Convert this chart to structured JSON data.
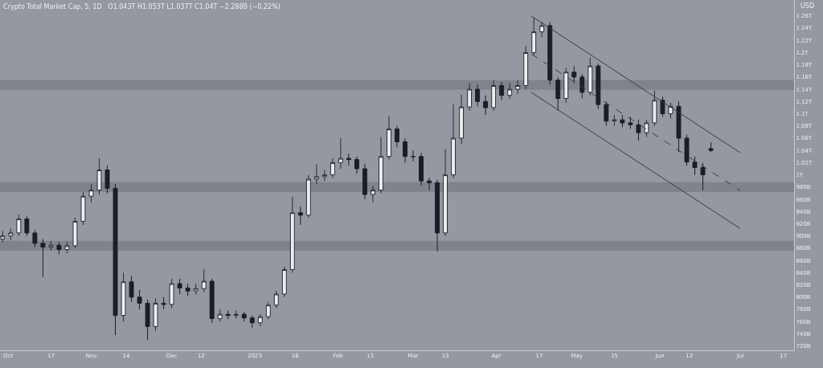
{
  "chart_data": {
    "type": "candlestick",
    "title": "Crypto Total Market Cap, 5, 1D",
    "subtitle": "O1.043T H1.053T L1.037T C1.04T −2.288B (−0.22%)",
    "ylabel": "USD",
    "x": [
      "2022-09-29",
      "2022-10-02",
      "2022-10-05",
      "2022-10-08",
      "2022-10-11",
      "2022-10-14",
      "2022-10-17",
      "2022-10-20",
      "2022-10-23",
      "2022-10-26",
      "2022-10-29",
      "2022-11-01",
      "2022-11-04",
      "2022-11-07",
      "2022-11-10",
      "2022-11-13",
      "2022-11-16",
      "2022-11-19",
      "2022-11-22",
      "2022-11-25",
      "2022-11-28",
      "2022-12-01",
      "2022-12-04",
      "2022-12-07",
      "2022-12-10",
      "2022-12-13",
      "2022-12-16",
      "2022-12-19",
      "2022-12-22",
      "2022-12-25",
      "2022-12-28",
      "2022-12-31",
      "2023-01-03",
      "2023-01-06",
      "2023-01-09",
      "2023-01-12",
      "2023-01-15",
      "2023-01-18",
      "2023-01-21",
      "2023-01-24",
      "2023-01-27",
      "2023-01-30",
      "2023-02-02",
      "2023-02-05",
      "2023-02-08",
      "2023-02-11",
      "2023-02-14",
      "2023-02-17",
      "2023-02-20",
      "2023-02-23",
      "2023-02-26",
      "2023-03-01",
      "2023-03-04",
      "2023-03-07",
      "2023-03-10",
      "2023-03-13",
      "2023-03-16",
      "2023-03-19",
      "2023-03-22",
      "2023-03-25",
      "2023-03-28",
      "2023-03-31",
      "2023-04-03",
      "2023-04-06",
      "2023-04-09",
      "2023-04-12",
      "2023-04-15",
      "2023-04-18",
      "2023-04-21",
      "2023-04-24",
      "2023-04-27",
      "2023-04-30",
      "2023-05-03",
      "2023-05-06",
      "2023-05-09",
      "2023-05-12",
      "2023-05-15",
      "2023-05-18",
      "2023-05-21",
      "2023-05-24",
      "2023-05-27",
      "2023-05-30",
      "2023-06-02",
      "2023-06-05",
      "2023-06-08",
      "2023-06-11",
      "2023-06-14",
      "2023-06-17",
      "2023-06-20"
    ],
    "ohlc": [
      [
        895000000000.0,
        908000000000.0,
        890000000000.0,
        900000000000.0
      ],
      [
        900000000000.0,
        912000000000.0,
        893000000000.0,
        905000000000.0
      ],
      [
        905000000000.0,
        935000000000.0,
        900000000000.0,
        928000000000.0
      ],
      [
        928000000000.0,
        932000000000.0,
        900000000000.0,
        905000000000.0
      ],
      [
        905000000000.0,
        910000000000.0,
        882000000000.0,
        888000000000.0
      ],
      [
        888000000000.0,
        895000000000.0,
        833000000000.0,
        882000000000.0
      ],
      [
        882000000000.0,
        892000000000.0,
        876000000000.0,
        885000000000.0
      ],
      [
        885000000000.0,
        890000000000.0,
        870000000000.0,
        878000000000.0
      ],
      [
        878000000000.0,
        890000000000.0,
        872000000000.0,
        884000000000.0
      ],
      [
        884000000000.0,
        930000000000.0,
        880000000000.0,
        924000000000.0
      ],
      [
        924000000000.0,
        972000000000.0,
        918000000000.0,
        965000000000.0
      ],
      [
        965000000000.0,
        985000000000.0,
        955000000000.0,
        975000000000.0
      ],
      [
        975000000000.0,
        1027000000000.0,
        968000000000.0,
        1008000000000.0
      ],
      [
        1008000000000.0,
        1015000000000.0,
        970000000000.0,
        978000000000.0
      ],
      [
        978000000000.0,
        985000000000.0,
        738000000000.0,
        770000000000.0
      ],
      [
        770000000000.0,
        840000000000.0,
        760000000000.0,
        825000000000.0
      ],
      [
        825000000000.0,
        835000000000.0,
        792000000000.0,
        800000000000.0
      ],
      [
        800000000000.0,
        812000000000.0,
        780000000000.0,
        790000000000.0
      ],
      [
        790000000000.0,
        796000000000.0,
        730000000000.0,
        752000000000.0
      ],
      [
        752000000000.0,
        798000000000.0,
        745000000000.0,
        790000000000.0
      ],
      [
        790000000000.0,
        800000000000.0,
        780000000000.0,
        788000000000.0
      ],
      [
        788000000000.0,
        830000000000.0,
        782000000000.0,
        822000000000.0
      ],
      [
        822000000000.0,
        830000000000.0,
        805000000000.0,
        815000000000.0
      ],
      [
        815000000000.0,
        822000000000.0,
        802000000000.0,
        810000000000.0
      ],
      [
        810000000000.0,
        822000000000.0,
        804000000000.0,
        814000000000.0
      ],
      [
        814000000000.0,
        846000000000.0,
        808000000000.0,
        826000000000.0
      ],
      [
        826000000000.0,
        830000000000.0,
        758000000000.0,
        765000000000.0
      ],
      [
        765000000000.0,
        780000000000.0,
        760000000000.0,
        772000000000.0
      ],
      [
        772000000000.0,
        778000000000.0,
        764000000000.0,
        770000000000.0
      ],
      [
        770000000000.0,
        778000000000.0,
        765000000000.0,
        772000000000.0
      ],
      [
        772000000000.0,
        776000000000.0,
        760000000000.0,
        766000000000.0
      ],
      [
        766000000000.0,
        770000000000.0,
        750000000000.0,
        758000000000.0
      ],
      [
        758000000000.0,
        772000000000.0,
        752000000000.0,
        768000000000.0
      ],
      [
        768000000000.0,
        792000000000.0,
        764000000000.0,
        787000000000.0
      ],
      [
        787000000000.0,
        810000000000.0,
        782000000000.0,
        805000000000.0
      ],
      [
        805000000000.0,
        850000000000.0,
        800000000000.0,
        845000000000.0
      ],
      [
        845000000000.0,
        964000000000.0,
        840000000000.0,
        938000000000.0
      ],
      [
        938000000000.0,
        948000000000.0,
        918000000000.0,
        934000000000.0
      ],
      [
        934000000000.0,
        1000000000000.0,
        930000000000.0,
        993000000000.0
      ],
      [
        993000000000.0,
        1017000000000.0,
        985000000000.0,
        997000000000.0
      ],
      [
        997000000000.0,
        1008000000000.0,
        990000000000.0,
        1000000000000.0
      ],
      [
        1000000000000.0,
        1027000000000.0,
        995000000000.0,
        1020000000000.0
      ],
      [
        1020000000000.0,
        1060000000000.0,
        1010000000000.0,
        1027000000000.0
      ],
      [
        1027000000000.0,
        1035000000000.0,
        1015000000000.0,
        1025000000000.0
      ],
      [
        1025000000000.0,
        1030000000000.0,
        1002000000000.0,
        1010000000000.0
      ],
      [
        1010000000000.0,
        1018000000000.0,
        960000000000.0,
        968000000000.0
      ],
      [
        968000000000.0,
        982000000000.0,
        955000000000.0,
        975000000000.0
      ],
      [
        975000000000.0,
        1062000000000.0,
        970000000000.0,
        1030000000000.0
      ],
      [
        1030000000000.0,
        1096000000000.0,
        1025000000000.0,
        1075000000000.0
      ],
      [
        1075000000000.0,
        1080000000000.0,
        1045000000000.0,
        1054000000000.0
      ],
      [
        1054000000000.0,
        1060000000000.0,
        1020000000000.0,
        1030000000000.0
      ],
      [
        1030000000000.0,
        1040000000000.0,
        1022000000000.0,
        1030000000000.0
      ],
      [
        1030000000000.0,
        1036000000000.0,
        982000000000.0,
        990000000000.0
      ],
      [
        990000000000.0,
        995000000000.0,
        975000000000.0,
        987000000000.0
      ],
      [
        987000000000.0,
        992000000000.0,
        875000000000.0,
        905000000000.0
      ],
      [
        905000000000.0,
        1042000000000.0,
        900000000000.0,
        1000000000000.0
      ],
      [
        1000000000000.0,
        1115000000000.0,
        995000000000.0,
        1060000000000.0
      ],
      [
        1060000000000.0,
        1131000000000.0,
        1050000000000.0,
        1111000000000.0
      ],
      [
        1111000000000.0,
        1150000000000.0,
        1105000000000.0,
        1140000000000.0
      ],
      [
        1140000000000.0,
        1148000000000.0,
        1112000000000.0,
        1120000000000.0
      ],
      [
        1120000000000.0,
        1130000000000.0,
        1098000000000.0,
        1110000000000.0
      ],
      [
        1110000000000.0,
        1155000000000.0,
        1105000000000.0,
        1146000000000.0
      ],
      [
        1146000000000.0,
        1152000000000.0,
        1122000000000.0,
        1130000000000.0
      ],
      [
        1130000000000.0,
        1150000000000.0,
        1124000000000.0,
        1140000000000.0
      ],
      [
        1140000000000.0,
        1155000000000.0,
        1132000000000.0,
        1146000000000.0
      ],
      [
        1146000000000.0,
        1211000000000.0,
        1140000000000.0,
        1200000000000.0
      ],
      [
        1200000000000.0,
        1257000000000.0,
        1195000000000.0,
        1234000000000.0
      ],
      [
        1234000000000.0,
        1250000000000.0,
        1225000000000.0,
        1244000000000.0
      ],
      [
        1244000000000.0,
        1250000000000.0,
        1148000000000.0,
        1155000000000.0
      ],
      [
        1155000000000.0,
        1160000000000.0,
        1105000000000.0,
        1125000000000.0
      ],
      [
        1125000000000.0,
        1175000000000.0,
        1118000000000.0,
        1168000000000.0
      ],
      [
        1168000000000.0,
        1178000000000.0,
        1150000000000.0,
        1160000000000.0
      ],
      [
        1160000000000.0,
        1165000000000.0,
        1125000000000.0,
        1135000000000.0
      ],
      [
        1135000000000.0,
        1192000000000.0,
        1130000000000.0,
        1178000000000.0
      ],
      [
        1178000000000.0,
        1182000000000.0,
        1108000000000.0,
        1115000000000.0
      ],
      [
        1115000000000.0,
        1120000000000.0,
        1080000000000.0,
        1088000000000.0
      ],
      [
        1088000000000.0,
        1098000000000.0,
        1080000000000.0,
        1090000000000.0
      ],
      [
        1090000000000.0,
        1098000000000.0,
        1078000000000.0,
        1085000000000.0
      ],
      [
        1085000000000.0,
        1095000000000.0,
        1075000000000.0,
        1082000000000.0
      ],
      [
        1082000000000.0,
        1090000000000.0,
        1056000000000.0,
        1069000000000.0
      ],
      [
        1069000000000.0,
        1090000000000.0,
        1062000000000.0,
        1085000000000.0
      ],
      [
        1085000000000.0,
        1138000000000.0,
        1080000000000.0,
        1122000000000.0
      ],
      [
        1122000000000.0,
        1128000000000.0,
        1095000000000.0,
        1100000000000.0
      ],
      [
        1100000000000.0,
        1118000000000.0,
        1092000000000.0,
        1112000000000.0
      ],
      [
        1112000000000.0,
        1120000000000.0,
        1037000000000.0,
        1060000000000.0
      ],
      [
        1060000000000.0,
        1066000000000.0,
        1015000000000.0,
        1021000000000.0
      ],
      [
        1021000000000.0,
        1030000000000.0,
        1000000000000.0,
        1012000000000.0
      ],
      [
        1012000000000.0,
        1020000000000.0,
        975000000000.0,
        1000000000000.0
      ],
      [
        1043000000000.0,
        1053000000000.0,
        1037000000000.0,
        1040000000000.0
      ]
    ],
    "series": [
      {
        "type": "line",
        "color": "#3a3d45",
        "line_style": "solid",
        "x": [
          "2023-04-14",
          "2023-07-01"
        ],
        "values": [
          1260000000000.0,
          1036000000000.0
        ]
      },
      {
        "type": "line",
        "color": "#3a3d45",
        "line_style": "dashed",
        "x": [
          "2023-04-14",
          "2023-07-01"
        ],
        "values": [
          1198000000000.0,
          974000000000.0
        ]
      },
      {
        "type": "line",
        "color": "#3a3d45",
        "line_style": "solid",
        "x": [
          "2023-04-14",
          "2023-07-01"
        ],
        "values": [
          1135000000000.0,
          912000000000.0
        ]
      }
    ],
    "bands": [
      {
        "axis": "y",
        "from": 1139000000000.0,
        "to": 1155000000000.0,
        "color": "#80838c"
      },
      {
        "axis": "y",
        "from": 972000000000.0,
        "to": 988000000000.0,
        "color": "#80838c"
      },
      {
        "axis": "y",
        "from": 876000000000.0,
        "to": 892000000000.0,
        "color": "#80838c"
      }
    ],
    "xlim": [
      "2022-09-28",
      "2023-07-21"
    ],
    "xticks": [
      {
        "value": "2022-10-01",
        "label": "Oct"
      },
      {
        "value": "2022-10-17",
        "label": "17"
      },
      {
        "value": "2022-11-01",
        "label": "Nov"
      },
      {
        "value": "2022-11-14",
        "label": "14"
      },
      {
        "value": "2022-12-01",
        "label": "Dec"
      },
      {
        "value": "2022-12-12",
        "label": "12"
      },
      {
        "value": "2023-01-01",
        "label": "2023"
      },
      {
        "value": "2023-01-16",
        "label": "16"
      },
      {
        "value": "2023-02-01",
        "label": "Feb"
      },
      {
        "value": "2023-02-13",
        "label": "13"
      },
      {
        "value": "2023-03-01",
        "label": "Mar"
      },
      {
        "value": "2023-03-13",
        "label": "13"
      },
      {
        "value": "2023-04-01",
        "label": "Apr"
      },
      {
        "value": "2023-04-17",
        "label": "17"
      },
      {
        "value": "2023-05-01",
        "label": "May"
      },
      {
        "value": "2023-05-15",
        "label": "15"
      },
      {
        "value": "2023-06-01",
        "label": "Jun"
      },
      {
        "value": "2023-06-12",
        "label": "12"
      },
      {
        "value": "2023-07-01",
        "label": "Jul"
      },
      {
        "value": "2023-07-17",
        "label": "17"
      }
    ],
    "ylim": [
      713000000000.0,
      1286000000000.0
    ],
    "yticks": [
      {
        "value": 720000000000.0,
        "label": "720B"
      },
      {
        "value": 740000000000.0,
        "label": "740B"
      },
      {
        "value": 760000000000.0,
        "label": "760B"
      },
      {
        "value": 780000000000.0,
        "label": "780B"
      },
      {
        "value": 800000000000.0,
        "label": "800B"
      },
      {
        "value": 820000000000.0,
        "label": "820B"
      },
      {
        "value": 840000000000.0,
        "label": "840B"
      },
      {
        "value": 860000000000.0,
        "label": "860B"
      },
      {
        "value": 880000000000.0,
        "label": "880B"
      },
      {
        "value": 900000000000.0,
        "label": "900B"
      },
      {
        "value": 920000000000.0,
        "label": "920B"
      },
      {
        "value": 940000000000.0,
        "label": "940B"
      },
      {
        "value": 960000000000.0,
        "label": "960B"
      },
      {
        "value": 980000000000.0,
        "label": "980B"
      },
      {
        "value": 1000000000000.0,
        "label": "1T"
      },
      {
        "value": 1020000000000.0,
        "label": "1.02T"
      },
      {
        "value": 1040000000000.0,
        "label": "1.04T"
      },
      {
        "value": 1060000000000.0,
        "label": "1.06T"
      },
      {
        "value": 1080000000000.0,
        "label": "1.08T"
      },
      {
        "value": 1100000000000.0,
        "label": "1.1T"
      },
      {
        "value": 1120000000000.0,
        "label": "1.12T"
      },
      {
        "value": 1140000000000.0,
        "label": "1.14T"
      },
      {
        "value": 1160000000000.0,
        "label": "1.16T"
      },
      {
        "value": 1180000000000.0,
        "label": "1.18T"
      },
      {
        "value": 1200000000000.0,
        "label": "1.2T"
      },
      {
        "value": 1220000000000.0,
        "label": "1.22T"
      },
      {
        "value": 1240000000000.0,
        "label": "1.24T"
      },
      {
        "value": 1260000000000.0,
        "label": "1.26T"
      }
    ],
    "grid": false
  }
}
